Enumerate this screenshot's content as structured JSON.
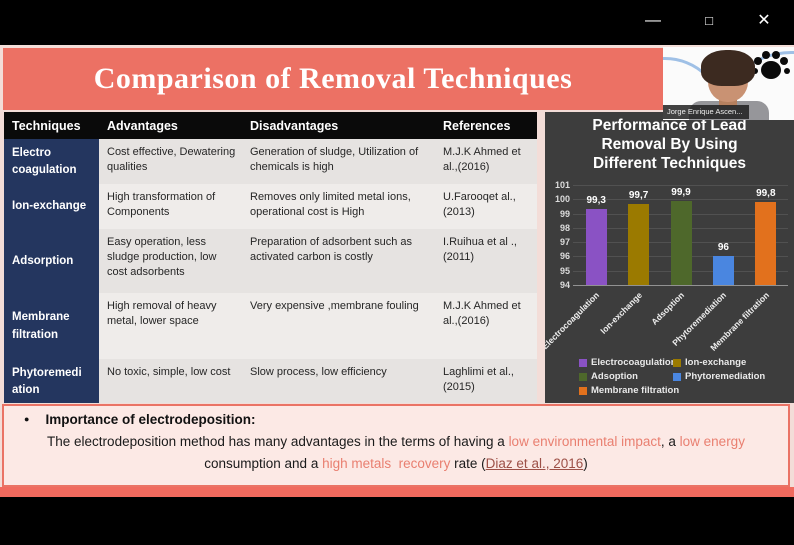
{
  "window": {
    "icons": {
      "minimize": "—",
      "maximize": "□",
      "close": "✕"
    }
  },
  "banner": {
    "title": "Comparison of Removal Techniques",
    "accent_color": "#ec7164"
  },
  "webcam": {
    "name": "Jorge Enrique Ascen..."
  },
  "table": {
    "headers": [
      "Techniques",
      "Advantages",
      "Disadvantages",
      "References"
    ],
    "technique_column_color": "#24365f",
    "rows": [
      {
        "technique": "Electro coagulation",
        "advantages": "Cost effective, Dewatering qualities",
        "disadvantages": "Generation of sludge, Utilization of chemicals is high",
        "references": "M.J.K Ahmed et al.,(2016)"
      },
      {
        "technique": "Ion-exchange",
        "advantages": "High transformation of Components",
        "disadvantages": "Removes only limited metal ions, operational cost is High",
        "references": "U.Farooqet al.,(2013)"
      },
      {
        "technique": "Adsorption",
        "advantages": "Easy operation, less sludge production, low cost adsorbents",
        "disadvantages": "Preparation of adsorbent such as activated carbon is costly",
        "references": "I.Ruihua et al .,(2011)"
      },
      {
        "technique": "Membrane filtration",
        "advantages": "High removal of heavy metal, lower space",
        "disadvantages": "Very expensive ,membrane fouling",
        "references": "M.J.K Ahmed et al.,(2016)"
      },
      {
        "technique": "Phytoremediation",
        "advantages": "No toxic, simple, low cost",
        "disadvantages": "Slow process, low efficiency",
        "references": "Laghlimi et al.,(2015)"
      }
    ]
  },
  "chart_data": {
    "type": "bar",
    "title": "Performance of Lead Removal By Using Different Techniques",
    "title_lines": [
      "Performance of Lead",
      "Removal By Using",
      "Different Techniques"
    ],
    "categories": [
      "Electrocoagulation",
      "Ion-exchange",
      "Adsoption",
      "Phytoremediation",
      "Membrane filtration"
    ],
    "values": [
      99.3,
      99.7,
      99.9,
      96,
      99.8
    ],
    "value_labels": [
      "99,3",
      "99,7",
      "99,9",
      "96",
      "99,8"
    ],
    "colors": [
      "#8a52c4",
      "#9b7a00",
      "#4e682b",
      "#4a86e0",
      "#e2711d"
    ],
    "ylim": [
      94,
      101
    ],
    "yticks": [
      101,
      100,
      99,
      98,
      97,
      96,
      95,
      94
    ],
    "xlabel": "",
    "ylabel": "",
    "grid": true,
    "legend_position": "bottom",
    "legend": [
      "Electrocoagulation",
      "Ion-exchange",
      "Adsoption",
      "Phytoremediation",
      "Membrane filtration"
    ],
    "background": "#3d3d3d"
  },
  "notes": {
    "bullet": "●",
    "heading": "Importance of electrodeposition:",
    "segments": [
      {
        "text": "The electrodeposition method has many advantages in the terms of having a ",
        "style": "normal"
      },
      {
        "text": "low environmental impact",
        "style": "accent"
      },
      {
        "text": ", a ",
        "style": "normal"
      },
      {
        "text": "low energy",
        "style": "accent"
      },
      {
        "text": " consumption and a ",
        "style": "normal"
      },
      {
        "text": "high metals  recovery",
        "style": "accent"
      },
      {
        "text": " rate (",
        "style": "normal"
      },
      {
        "text": "Diaz et al., 2016",
        "style": "link"
      },
      {
        "text": ")",
        "style": "normal"
      }
    ]
  }
}
